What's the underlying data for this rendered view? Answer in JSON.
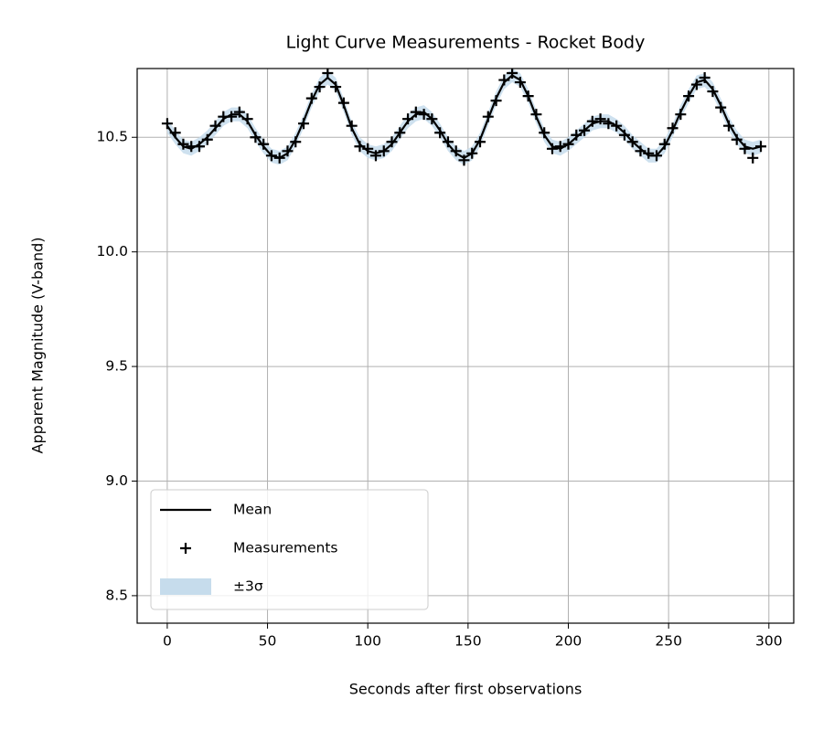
{
  "chart_data": {
    "type": "line",
    "title": "Light Curve Measurements - Rocket Body",
    "x_label": "Seconds after first observations",
    "y_label": "Apparent Magnitude (V-band)",
    "x": [
      0,
      4,
      8,
      12,
      16,
      20,
      24,
      28,
      32,
      36,
      40,
      44,
      48,
      52,
      56,
      60,
      64,
      68,
      72,
      76,
      80,
      84,
      88,
      92,
      96,
      100,
      104,
      108,
      112,
      116,
      120,
      124,
      128,
      132,
      136,
      140,
      144,
      148,
      152,
      156,
      160,
      164,
      168,
      172,
      176,
      180,
      184,
      188,
      192,
      196,
      200,
      204,
      208,
      212,
      216,
      220,
      224,
      228,
      232,
      236,
      240,
      244,
      248,
      252,
      256,
      260,
      264,
      268,
      272,
      276,
      280,
      284,
      288,
      292,
      296
    ],
    "series": [
      {
        "name": "Mean",
        "kind": "line",
        "color": "#000000",
        "values": [
          10.55,
          10.5,
          10.46,
          10.45,
          10.47,
          10.5,
          10.54,
          10.58,
          10.6,
          10.6,
          10.57,
          10.51,
          10.46,
          10.42,
          10.41,
          10.43,
          10.49,
          10.57,
          10.66,
          10.73,
          10.76,
          10.73,
          10.64,
          10.54,
          10.47,
          10.44,
          10.43,
          10.44,
          10.47,
          10.52,
          10.57,
          10.6,
          10.61,
          10.58,
          10.53,
          10.47,
          10.43,
          10.41,
          10.43,
          10.49,
          10.58,
          10.67,
          10.74,
          10.77,
          10.75,
          10.68,
          10.59,
          10.51,
          10.46,
          10.45,
          10.47,
          10.5,
          10.53,
          10.56,
          10.57,
          10.57,
          10.55,
          10.52,
          10.48,
          10.45,
          10.42,
          10.42,
          10.46,
          10.53,
          10.61,
          10.68,
          10.74,
          10.75,
          10.71,
          10.64,
          10.56,
          10.5,
          10.46,
          10.45,
          10.46
        ]
      },
      {
        "name": "Measurements",
        "kind": "scatter",
        "color": "#000000",
        "values": [
          10.56,
          10.52,
          10.47,
          10.46,
          10.46,
          10.49,
          10.55,
          10.59,
          10.59,
          10.61,
          10.58,
          10.5,
          10.47,
          10.42,
          10.41,
          10.44,
          10.48,
          10.56,
          10.67,
          10.72,
          10.78,
          10.72,
          10.65,
          10.55,
          10.46,
          10.45,
          10.42,
          10.44,
          10.48,
          10.52,
          10.58,
          10.61,
          10.6,
          10.58,
          10.52,
          10.48,
          10.44,
          10.4,
          10.43,
          10.48,
          10.59,
          10.66,
          10.75,
          10.78,
          10.74,
          10.68,
          10.6,
          10.52,
          10.45,
          10.46,
          10.47,
          10.51,
          10.53,
          10.57,
          10.58,
          10.56,
          10.55,
          10.51,
          10.48,
          10.44,
          10.43,
          10.42,
          10.47,
          10.54,
          10.6,
          10.68,
          10.73,
          10.76,
          10.7,
          10.63,
          10.55,
          10.49,
          10.45,
          10.41,
          10.46
        ]
      },
      {
        "name": "±3σ",
        "kind": "band",
        "color": "#c6dcec",
        "upper": [
          10.58,
          10.53,
          10.49,
          10.48,
          10.5,
          10.53,
          10.57,
          10.61,
          10.63,
          10.63,
          10.6,
          10.54,
          10.49,
          10.45,
          10.44,
          10.46,
          10.52,
          10.6,
          10.69,
          10.76,
          10.79,
          10.76,
          10.67,
          10.57,
          10.5,
          10.47,
          10.46,
          10.47,
          10.5,
          10.55,
          10.6,
          10.63,
          10.64,
          10.61,
          10.56,
          10.5,
          10.46,
          10.44,
          10.46,
          10.52,
          10.61,
          10.7,
          10.77,
          10.8,
          10.78,
          10.71,
          10.62,
          10.54,
          10.49,
          10.48,
          10.5,
          10.53,
          10.56,
          10.59,
          10.6,
          10.6,
          10.58,
          10.55,
          10.51,
          10.48,
          10.45,
          10.45,
          10.49,
          10.56,
          10.64,
          10.71,
          10.77,
          10.78,
          10.74,
          10.67,
          10.59,
          10.53,
          10.49,
          10.48,
          10.49
        ],
        "lower": [
          10.52,
          10.47,
          10.43,
          10.42,
          10.44,
          10.47,
          10.51,
          10.55,
          10.57,
          10.57,
          10.54,
          10.48,
          10.43,
          10.39,
          10.38,
          10.4,
          10.46,
          10.54,
          10.63,
          10.7,
          10.73,
          10.7,
          10.61,
          10.51,
          10.44,
          10.41,
          10.4,
          10.41,
          10.44,
          10.49,
          10.54,
          10.57,
          10.58,
          10.55,
          10.5,
          10.44,
          10.4,
          10.38,
          10.4,
          10.46,
          10.55,
          10.64,
          10.71,
          10.74,
          10.72,
          10.65,
          10.56,
          10.48,
          10.43,
          10.42,
          10.44,
          10.47,
          10.5,
          10.53,
          10.54,
          10.54,
          10.52,
          10.49,
          10.45,
          10.42,
          10.39,
          10.39,
          10.43,
          10.5,
          10.58,
          10.65,
          10.71,
          10.72,
          10.68,
          10.61,
          10.53,
          10.47,
          10.43,
          10.42,
          10.43
        ]
      }
    ],
    "xlim": [
      -15,
      312.4
    ],
    "ylim": [
      8.38,
      10.8
    ],
    "xticks": [
      0,
      50,
      100,
      150,
      200,
      250,
      300
    ],
    "yticks": [
      8.5,
      {
        "value": 9,
        "label": "9.0"
      },
      9.5,
      {
        "value": 10,
        "label": "10.0"
      },
      10.5
    ],
    "grid": true,
    "legend": "lower left"
  }
}
